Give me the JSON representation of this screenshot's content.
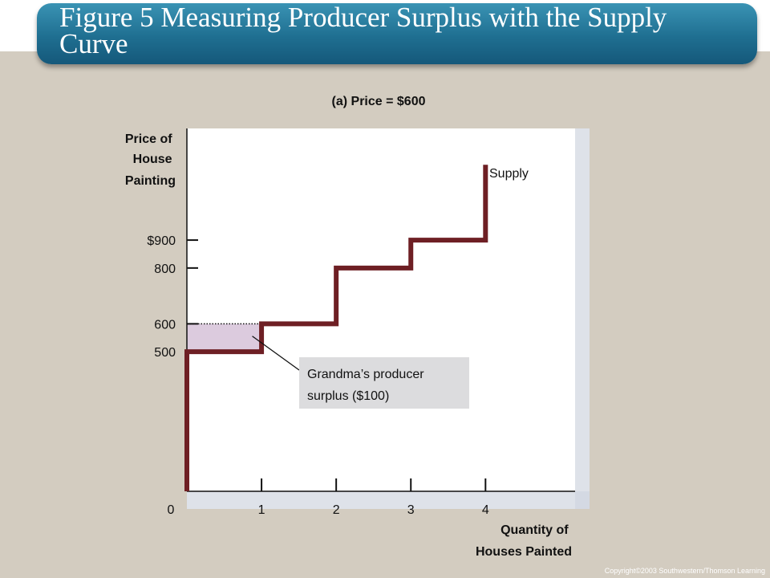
{
  "header": {
    "title": "Figure 5 Measuring Producer Surplus with the Supply Curve"
  },
  "footer": {
    "copyright": "Copyright©2003  Southwestern/Thomson Learning"
  },
  "chart_data": {
    "type": "line",
    "step": true,
    "subtitle": "(a) Price = $600",
    "ylabel": [
      "Price of",
      "House",
      "Painting"
    ],
    "xlabel": [
      "Quantity of",
      "Houses Painted"
    ],
    "xlim": [
      0,
      5.2
    ],
    "ylim": [
      0,
      1300
    ],
    "origin_label": "0",
    "x_ticks": [
      {
        "value": 1,
        "label": "1"
      },
      {
        "value": 2,
        "label": "2"
      },
      {
        "value": 3,
        "label": "3"
      },
      {
        "value": 4,
        "label": "4"
      }
    ],
    "y_ticks": [
      {
        "value": 900,
        "label": "$900"
      },
      {
        "value": 800,
        "label": "800"
      },
      {
        "value": 600,
        "label": "600"
      },
      {
        "value": 500,
        "label": "500"
      }
    ],
    "series": [
      {
        "name": "Supply",
        "color": "#6e1f24",
        "steps": [
          {
            "x_start": 0,
            "x_end": 1,
            "price": 500
          },
          {
            "x_start": 1,
            "x_end": 2,
            "price": 600
          },
          {
            "x_start": 2,
            "x_end": 3,
            "price": 800
          },
          {
            "x_start": 3,
            "x_end": 4,
            "price": 900
          }
        ],
        "top_price": 1170
      }
    ],
    "price_line": {
      "price": 600,
      "x_start": 0,
      "x_end": 1,
      "style": "dotted"
    },
    "surplus_area": {
      "x_start": 0,
      "x_end": 1,
      "price_low": 500,
      "price_high": 600,
      "color": "#dccbde"
    },
    "annotation": {
      "lines": [
        "Grandma’s producer",
        "surplus ($100)"
      ],
      "value": 100,
      "box_color": "#dcdcde"
    }
  }
}
